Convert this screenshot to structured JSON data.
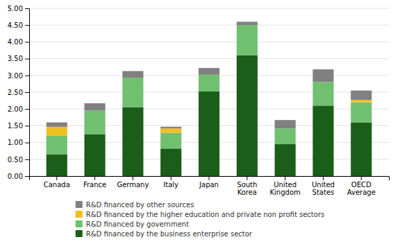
{
  "chart_data": {
    "type": "bar",
    "stacked": true,
    "categories": [
      "Canada",
      "France",
      "Germany",
      "Italy",
      "Japan",
      "South\nKorea",
      "United\nKingdom",
      "United\nStates",
      "OECD\nAverage"
    ],
    "series": [
      {
        "name": "R&D financed by the business enterprise sector",
        "color": "#1a5e1a",
        "values": [
          0.65,
          1.25,
          2.05,
          0.82,
          2.52,
          3.6,
          0.95,
          2.1,
          1.6
        ]
      },
      {
        "name": "R&D financed by government",
        "color": "#70c070",
        "values": [
          0.55,
          0.7,
          0.88,
          0.47,
          0.5,
          0.9,
          0.47,
          0.7,
          0.6
        ]
      },
      {
        "name": "R&D financed by the higher education and private non profit sectors",
        "color": "#f0c020",
        "values": [
          0.27,
          0.0,
          0.0,
          0.13,
          0.0,
          0.0,
          0.0,
          0.0,
          0.07
        ]
      },
      {
        "name": "R&D financed by other sources",
        "color": "#808080",
        "values": [
          0.13,
          0.22,
          0.2,
          0.05,
          0.2,
          0.1,
          0.25,
          0.38,
          0.28
        ]
      }
    ],
    "ylim": [
      0,
      5.0
    ],
    "yticks": [
      {
        "value": 0.0,
        "label": "0.00"
      },
      {
        "value": 0.5,
        "label": "0.50"
      },
      {
        "value": 1.0,
        "label": "1.00"
      },
      {
        "value": 1.5,
        "label": "1.50"
      },
      {
        "value": 2.0,
        "label": "2.00"
      },
      {
        "value": 2.5,
        "label": "2.50"
      },
      {
        "value": 3.0,
        "label": "3.00"
      },
      {
        "value": 3.5,
        "label": "3.50"
      },
      {
        "value": 4.0,
        "label": "4.00"
      },
      {
        "value": 4.5,
        "label": "4.50"
      },
      {
        "value": 5.0,
        "label": "5.00"
      }
    ],
    "grid": true,
    "legend": "bottom"
  }
}
